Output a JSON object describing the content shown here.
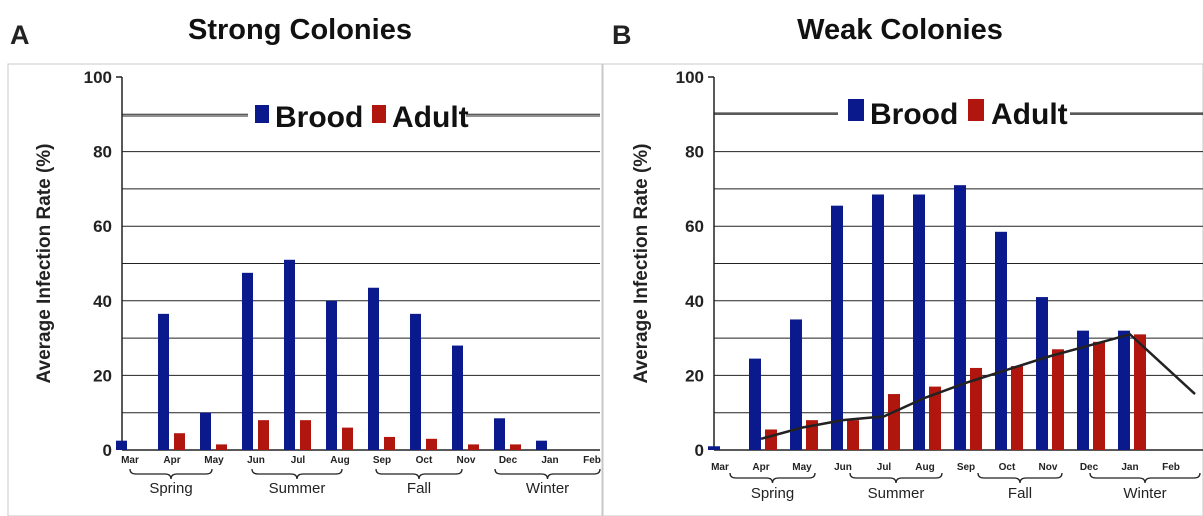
{
  "panels": [
    {
      "letter": "A",
      "title": "Strong Colonies",
      "chart_data": {
        "type": "bar",
        "title": "Strong Colonies",
        "xlabel": "",
        "ylabel": "Average Infection Rate (%)",
        "ylim": [
          0,
          100
        ],
        "yticks": [
          "0",
          "20",
          "40",
          "60",
          "80",
          "100"
        ],
        "categories": [
          "Mar",
          "Apr",
          "May",
          "Jun",
          "Jul",
          "Aug",
          "Sep",
          "Oct",
          "Nov",
          "Dec",
          "Jan",
          "Feb"
        ],
        "seasons": [
          "Spring",
          "Summer",
          "Fall",
          "Winter"
        ],
        "series": [
          {
            "name": "Brood",
            "color": "#0a1a8c",
            "values": [
              2.5,
              36.5,
              10,
              47.5,
              51,
              40,
              43.5,
              36.5,
              28,
              8.5,
              2.5,
              0
            ]
          },
          {
            "name": "Adult",
            "color": "#b0160e",
            "values": [
              0,
              4.5,
              1.5,
              8,
              8,
              6,
              3.5,
              3,
              1.5,
              1.5,
              0,
              0
            ]
          }
        ],
        "legend": "top-center",
        "grid": true
      }
    },
    {
      "letter": "B",
      "title": "Weak Colonies",
      "chart_data": {
        "type": "bar",
        "title": "Weak Colonies",
        "xlabel": "",
        "ylabel": "Average Infection Rate (%)",
        "ylim": [
          0,
          100
        ],
        "yticks": [
          "0",
          "20",
          "40",
          "60",
          "80",
          "100"
        ],
        "categories": [
          "Mar",
          "Apr",
          "May",
          "Jun",
          "Jul",
          "Aug",
          "Sep",
          "Oct",
          "Nov",
          "Dec",
          "Jan",
          "Feb"
        ],
        "seasons": [
          "Spring",
          "Summer",
          "Fall",
          "Winter"
        ],
        "series": [
          {
            "name": "Brood",
            "color": "#0a1a8c",
            "values": [
              1,
              24.5,
              35,
              65.5,
              68.5,
              68.5,
              71,
              58.5,
              41,
              32,
              32,
              0
            ]
          },
          {
            "name": "Adult",
            "color": "#b0160e",
            "values": [
              0,
              5.5,
              8,
              8,
              15,
              17,
              22,
              22.5,
              27,
              29,
              31,
              0
            ]
          }
        ],
        "trend": {
          "color": "#222222",
          "x": [
            "Apr",
            "May",
            "Jun",
            "Jul",
            "Aug",
            "Sep",
            "Oct",
            "Nov",
            "Dec",
            "Jan",
            "Feb"
          ],
          "values": [
            3,
            6,
            8,
            9,
            14,
            18,
            21.5,
            25,
            28,
            31,
            15
          ]
        },
        "legend": "top-center",
        "grid": true
      }
    }
  ]
}
